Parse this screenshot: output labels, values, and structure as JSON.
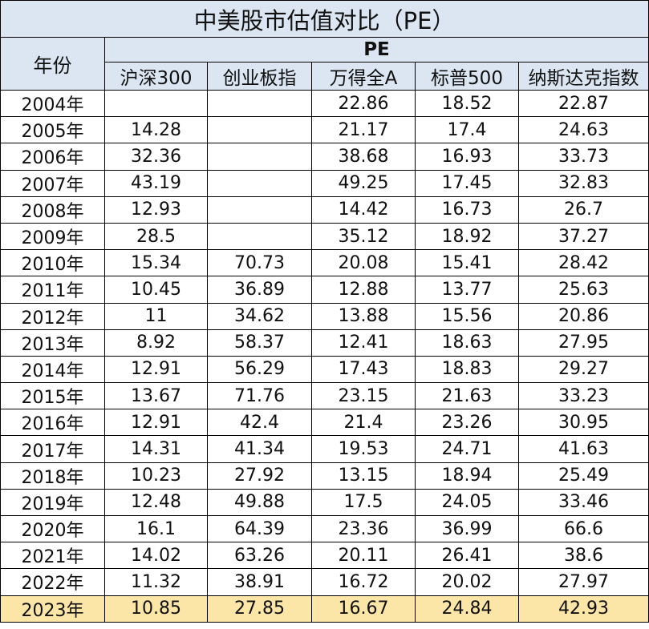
{
  "chart_data": {
    "type": "table",
    "title": "中美股市估值对比（PE）",
    "row_header": "年份",
    "group_header": "PE",
    "columns": [
      "沪深300",
      "创业板指",
      "万得全A",
      "标普500",
      "纳斯达克指数"
    ],
    "rows": [
      {
        "year": "2004年",
        "values": [
          "",
          "",
          "22.86",
          "18.52",
          "22.87"
        ]
      },
      {
        "year": "2005年",
        "values": [
          "14.28",
          "",
          "21.17",
          "17.4",
          "24.63"
        ]
      },
      {
        "year": "2006年",
        "values": [
          "32.36",
          "",
          "38.68",
          "16.93",
          "33.73"
        ]
      },
      {
        "year": "2007年",
        "values": [
          "43.19",
          "",
          "49.25",
          "17.45",
          "32.83"
        ]
      },
      {
        "year": "2008年",
        "values": [
          "12.93",
          "",
          "14.42",
          "16.73",
          "26.7"
        ]
      },
      {
        "year": "2009年",
        "values": [
          "28.5",
          "",
          "35.12",
          "18.92",
          "37.27"
        ]
      },
      {
        "year": "2010年",
        "values": [
          "15.34",
          "70.73",
          "20.08",
          "15.41",
          "28.42"
        ]
      },
      {
        "year": "2011年",
        "values": [
          "10.45",
          "36.89",
          "12.88",
          "13.77",
          "25.63"
        ]
      },
      {
        "year": "2012年",
        "values": [
          "11",
          "34.62",
          "13.88",
          "15.56",
          "20.86"
        ]
      },
      {
        "year": "2013年",
        "values": [
          "8.92",
          "58.37",
          "12.41",
          "18.63",
          "27.95"
        ]
      },
      {
        "year": "2014年",
        "values": [
          "12.91",
          "56.29",
          "17.43",
          "18.83",
          "29.27"
        ]
      },
      {
        "year": "2015年",
        "values": [
          "13.67",
          "71.76",
          "23.15",
          "21.63",
          "33.23"
        ]
      },
      {
        "year": "2016年",
        "values": [
          "12.91",
          "42.4",
          "21.4",
          "23.26",
          "30.95"
        ]
      },
      {
        "year": "2017年",
        "values": [
          "14.31",
          "41.34",
          "19.53",
          "24.71",
          "41.63"
        ]
      },
      {
        "year": "2018年",
        "values": [
          "10.23",
          "27.92",
          "13.15",
          "18.94",
          "25.49"
        ]
      },
      {
        "year": "2019年",
        "values": [
          "12.48",
          "49.88",
          "17.5",
          "24.05",
          "33.46"
        ]
      },
      {
        "year": "2020年",
        "values": [
          "16.1",
          "64.39",
          "23.36",
          "36.99",
          "66.6"
        ]
      },
      {
        "year": "2021年",
        "values": [
          "14.02",
          "63.26",
          "20.11",
          "26.41",
          "38.6"
        ]
      },
      {
        "year": "2022年",
        "values": [
          "11.32",
          "38.91",
          "16.72",
          "20.02",
          "27.97"
        ]
      },
      {
        "year": "2023年",
        "values": [
          "10.85",
          "27.85",
          "16.67",
          "24.84",
          "42.93"
        ]
      }
    ],
    "highlight_row": "2023年"
  },
  "colors": {
    "header_bg": "#dbe6f2",
    "highlight_bg": "#fbe6a7",
    "border": "#000000"
  }
}
